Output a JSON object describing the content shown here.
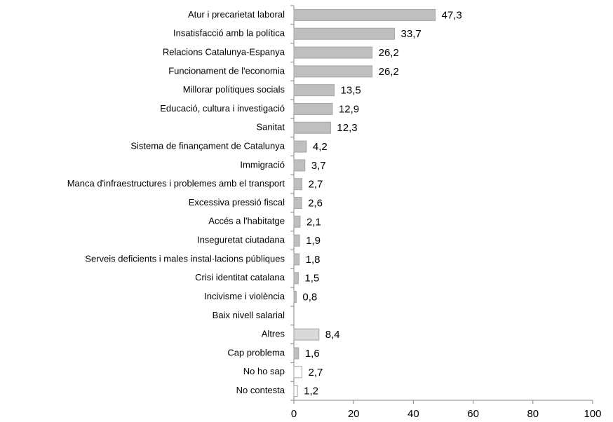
{
  "chart_data": {
    "type": "barh",
    "categories": [
      "Atur i precarietat laboral",
      "Insatisfacció amb la política",
      "Relacions Catalunya-Espanya",
      "Funcionament de l'economia",
      "Millorar polítiques socials",
      "Educació, cultura i investigació",
      "Sanitat",
      "Sistema de finançament de Catalunya",
      "Immigració",
      "Manca d'infraestructures i problemes amb el transport",
      "Excessiva pressió fiscal",
      "Accés a l'habitatge",
      "Inseguretat ciutadana",
      "Serveis deficients i males instal·lacions públiques",
      "Crisi identitat catalana",
      "Incivisme i violència",
      "Baix nivell salarial",
      "Altres",
      "Cap problema",
      "No ho sap",
      "No contesta"
    ],
    "values": [
      47.3,
      33.7,
      26.2,
      26.2,
      13.5,
      12.9,
      12.3,
      4.2,
      3.7,
      2.7,
      2.6,
      2.1,
      1.9,
      1.8,
      1.5,
      0.8,
      null,
      8.4,
      1.6,
      2.7,
      1.2
    ],
    "value_labels": [
      "47,3",
      "33,7",
      "26,2",
      "26,2",
      "13,5",
      "12,9",
      "12,3",
      "4,2",
      "3,7",
      "2,7",
      "2,6",
      "2,1",
      "1,9",
      "1,8",
      "1,5",
      "0,8",
      null,
      "8,4",
      "1,6",
      "2,7",
      "1,2"
    ],
    "colors": [
      "#bfbfbf",
      "#bfbfbf",
      "#bfbfbf",
      "#bfbfbf",
      "#bfbfbf",
      "#bfbfbf",
      "#bfbfbf",
      "#bfbfbf",
      "#bfbfbf",
      "#bfbfbf",
      "#bfbfbf",
      "#bfbfbf",
      "#bfbfbf",
      "#bfbfbf",
      "#bfbfbf",
      "#bfbfbf",
      "#bfbfbf",
      "#d9d9d9",
      "#bfbfbf",
      "#ffffff",
      "#ffffff"
    ],
    "xlim": [
      0,
      100
    ],
    "xticks": [
      0,
      20,
      40,
      60,
      80,
      100
    ],
    "grid": false
  }
}
